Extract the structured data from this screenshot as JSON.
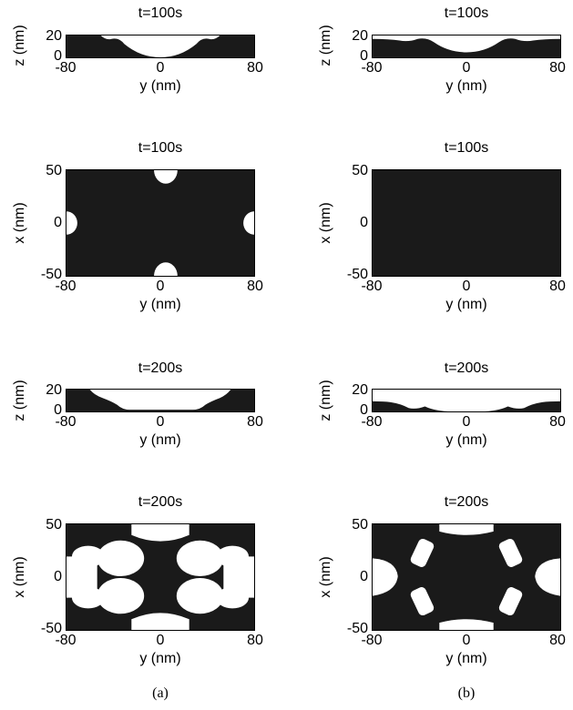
{
  "figure": {
    "captions": {
      "a": "(a)",
      "b": "(b)"
    },
    "panels": [
      {
        "id": "a1",
        "title": "t=100s",
        "ylabel": "z (nm)",
        "xlabel": "y (nm)",
        "xticks": [
          "-80",
          "0",
          "80"
        ],
        "yticks": [
          "20",
          "0"
        ]
      },
      {
        "id": "b1",
        "title": "t=100s",
        "ylabel": "z (nm)",
        "xlabel": "y (nm)",
        "xticks": [
          "-80",
          "0",
          "80"
        ],
        "yticks": [
          "20",
          "0"
        ]
      },
      {
        "id": "a2",
        "title": "t=100s",
        "ylabel": "x (nm)",
        "xlabel": "y (nm)",
        "xticks": [
          "-80",
          "0",
          "80"
        ],
        "yticks": [
          "50",
          "0",
          "-50"
        ]
      },
      {
        "id": "b2",
        "title": "t=100s",
        "ylabel": "x (nm)",
        "xlabel": "y (nm)",
        "xticks": [
          "-80",
          "0",
          "80"
        ],
        "yticks": [
          "50",
          "0",
          "-50"
        ]
      },
      {
        "id": "a3",
        "title": "t=200s",
        "ylabel": "z (nm)",
        "xlabel": "y (nm)",
        "xticks": [
          "-80",
          "0",
          "80"
        ],
        "yticks": [
          "20",
          "0"
        ]
      },
      {
        "id": "b3",
        "title": "t=200s",
        "ylabel": "z (nm)",
        "xlabel": "y (nm)",
        "xticks": [
          "-80",
          "0",
          "80"
        ],
        "yticks": [
          "20",
          "0"
        ]
      },
      {
        "id": "a4",
        "title": "t=200s",
        "ylabel": "x (nm)",
        "xlabel": "y (nm)",
        "xticks": [
          "-80",
          "0",
          "80"
        ],
        "yticks": [
          "50",
          "0",
          "-50"
        ]
      },
      {
        "id": "b4",
        "title": "t=200s",
        "ylabel": "x (nm)",
        "xlabel": "y (nm)",
        "xticks": [
          "-80",
          "0",
          "80"
        ],
        "yticks": [
          "50",
          "0",
          "-50"
        ]
      }
    ],
    "colors": {
      "solid": "#1a1a1a",
      "void": "#ffffff"
    }
  }
}
